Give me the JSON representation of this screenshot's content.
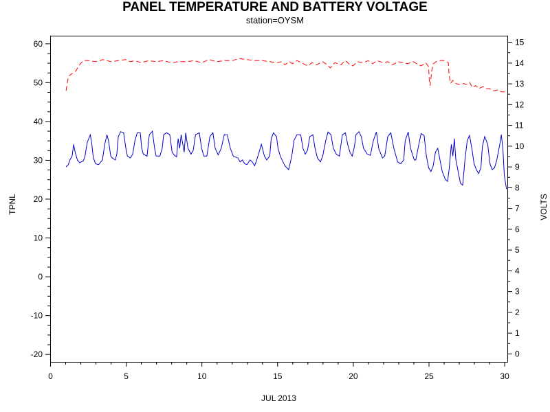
{
  "chart_data": {
    "type": "line",
    "title": "PANEL TEMPERATURE AND BATTERY VOLTAGE",
    "subtitle": "station=OYSM",
    "xlabel": "JUL 2013",
    "ylabel_left": "TPNL",
    "ylabel_right": "VOLTS",
    "xlim": [
      0,
      30.2
    ],
    "ylim_left": [
      -22,
      62
    ],
    "ylim_right": [
      -0.4,
      15.3
    ],
    "x_ticks": [
      0,
      5,
      10,
      15,
      20,
      25,
      30
    ],
    "y_left_ticks": [
      -20,
      -10,
      0,
      10,
      20,
      30,
      40,
      50,
      60
    ],
    "y_right_ticks": [
      0,
      1,
      2,
      3,
      4,
      5,
      6,
      7,
      8,
      9,
      10,
      11,
      12,
      13,
      14,
      15
    ],
    "grid": false,
    "legend": "none",
    "series": [
      {
        "axis": "left",
        "color": "#0000cc",
        "style": "solid",
        "points": [
          [
            1.05,
            28.2
          ],
          [
            1.2,
            28.8
          ],
          [
            1.3,
            30
          ],
          [
            1.45,
            31
          ],
          [
            1.55,
            34
          ],
          [
            1.65,
            32
          ],
          [
            1.8,
            30
          ],
          [
            1.95,
            29.3
          ],
          [
            2.2,
            29.8
          ],
          [
            2.3,
            31
          ],
          [
            2.45,
            34.5
          ],
          [
            2.65,
            36.5
          ],
          [
            2.75,
            34
          ],
          [
            2.85,
            30.5
          ],
          [
            3.0,
            29
          ],
          [
            3.2,
            28.8
          ],
          [
            3.45,
            30
          ],
          [
            3.6,
            34
          ],
          [
            3.75,
            36.5
          ],
          [
            3.85,
            35
          ],
          [
            4.0,
            31
          ],
          [
            4.1,
            30.5
          ],
          [
            4.3,
            30
          ],
          [
            4.4,
            31.5
          ],
          [
            4.5,
            36
          ],
          [
            4.65,
            37.3
          ],
          [
            4.85,
            37
          ],
          [
            5.0,
            33
          ],
          [
            5.1,
            31
          ],
          [
            5.3,
            30.5
          ],
          [
            5.45,
            31.5
          ],
          [
            5.6,
            35
          ],
          [
            5.75,
            37
          ],
          [
            5.95,
            37
          ],
          [
            6.05,
            33
          ],
          [
            6.15,
            31.5
          ],
          [
            6.4,
            31
          ],
          [
            6.55,
            36.5
          ],
          [
            6.75,
            37.4
          ],
          [
            6.9,
            33
          ],
          [
            7.0,
            31
          ],
          [
            7.25,
            31
          ],
          [
            7.4,
            33
          ],
          [
            7.5,
            36.5
          ],
          [
            7.7,
            37
          ],
          [
            7.9,
            36.5
          ],
          [
            8.05,
            32
          ],
          [
            8.2,
            31.2
          ],
          [
            8.35,
            30.8
          ],
          [
            8.45,
            35.5
          ],
          [
            8.55,
            33
          ],
          [
            8.65,
            36.5
          ],
          [
            8.85,
            32
          ],
          [
            8.95,
            37
          ],
          [
            9.1,
            33
          ],
          [
            9.3,
            31.5
          ],
          [
            9.45,
            32.5
          ],
          [
            9.6,
            36.5
          ],
          [
            9.85,
            37
          ],
          [
            10.0,
            33
          ],
          [
            10.15,
            31
          ],
          [
            10.35,
            31
          ],
          [
            10.55,
            36
          ],
          [
            10.75,
            37
          ],
          [
            10.9,
            33
          ],
          [
            11.1,
            31.3
          ],
          [
            11.3,
            33
          ],
          [
            11.5,
            36.5
          ],
          [
            11.7,
            36.5
          ],
          [
            11.9,
            33
          ],
          [
            12.1,
            31
          ],
          [
            12.4,
            30.5
          ],
          [
            12.55,
            29.5
          ],
          [
            12.7,
            30
          ],
          [
            12.85,
            29
          ],
          [
            13.0,
            28.8
          ],
          [
            13.2,
            30
          ],
          [
            13.35,
            29.5
          ],
          [
            13.5,
            28.5
          ],
          [
            13.6,
            29.5
          ],
          [
            13.8,
            32
          ],
          [
            13.95,
            34
          ],
          [
            14.15,
            31
          ],
          [
            14.3,
            30
          ],
          [
            14.5,
            31
          ],
          [
            14.6,
            35.5
          ],
          [
            14.75,
            37
          ],
          [
            14.95,
            36
          ],
          [
            15.05,
            33
          ],
          [
            15.2,
            31
          ],
          [
            15.5,
            28.5
          ],
          [
            15.75,
            27.5
          ],
          [
            15.9,
            30
          ],
          [
            16.0,
            32
          ],
          [
            16.1,
            35
          ],
          [
            16.3,
            36.5
          ],
          [
            16.55,
            36.5
          ],
          [
            16.7,
            33
          ],
          [
            16.85,
            31.5
          ],
          [
            17.0,
            32.5
          ],
          [
            17.15,
            36
          ],
          [
            17.35,
            36.5
          ],
          [
            17.5,
            33
          ],
          [
            17.65,
            30.5
          ],
          [
            17.85,
            29.5
          ],
          [
            18.0,
            31
          ],
          [
            18.2,
            35
          ],
          [
            18.35,
            37.2
          ],
          [
            18.55,
            36.5
          ],
          [
            18.7,
            33
          ],
          [
            18.9,
            31.5
          ],
          [
            19.1,
            31
          ],
          [
            19.3,
            36.5
          ],
          [
            19.5,
            37
          ],
          [
            19.65,
            34
          ],
          [
            19.8,
            32
          ],
          [
            19.95,
            31
          ],
          [
            20.1,
            33.5
          ],
          [
            20.2,
            36.5
          ],
          [
            20.4,
            37.3
          ],
          [
            20.55,
            36
          ],
          [
            20.7,
            33
          ],
          [
            20.95,
            31.5
          ],
          [
            21.15,
            31.2
          ],
          [
            21.35,
            35
          ],
          [
            21.55,
            37.2
          ],
          [
            21.7,
            33
          ],
          [
            21.95,
            30.5
          ],
          [
            22.1,
            31
          ],
          [
            22.3,
            36
          ],
          [
            22.5,
            37
          ],
          [
            22.7,
            33
          ],
          [
            22.95,
            29.5
          ],
          [
            23.15,
            29
          ],
          [
            23.35,
            30
          ],
          [
            23.45,
            35
          ],
          [
            23.65,
            37.2
          ],
          [
            23.8,
            33
          ],
          [
            24.05,
            30
          ],
          [
            24.15,
            30
          ],
          [
            24.35,
            34
          ],
          [
            24.5,
            36.8
          ],
          [
            24.7,
            36.3
          ],
          [
            24.85,
            31
          ],
          [
            25.0,
            28
          ],
          [
            25.15,
            27
          ],
          [
            25.3,
            28.5
          ],
          [
            25.45,
            32
          ],
          [
            25.6,
            33
          ],
          [
            25.75,
            30
          ],
          [
            25.9,
            27
          ],
          [
            26.1,
            25
          ],
          [
            26.25,
            24.5
          ],
          [
            26.35,
            27.5
          ],
          [
            26.5,
            34
          ],
          [
            26.6,
            31
          ],
          [
            26.7,
            35.5
          ],
          [
            26.8,
            30
          ],
          [
            26.95,
            27
          ],
          [
            27.1,
            24
          ],
          [
            27.25,
            23.5
          ],
          [
            27.4,
            30
          ],
          [
            27.55,
            35
          ],
          [
            27.7,
            36.3
          ],
          [
            27.85,
            33
          ],
          [
            28.0,
            29
          ],
          [
            28.15,
            27.5
          ],
          [
            28.3,
            26.5
          ],
          [
            28.45,
            28
          ],
          [
            28.55,
            33.5
          ],
          [
            28.7,
            36
          ],
          [
            28.9,
            34
          ],
          [
            29.05,
            29
          ],
          [
            29.2,
            27.5
          ],
          [
            29.35,
            28
          ],
          [
            29.5,
            30
          ],
          [
            29.6,
            32
          ],
          [
            29.7,
            34
          ],
          [
            29.8,
            36.5
          ],
          [
            29.9,
            33
          ],
          [
            30.0,
            26
          ],
          [
            30.1,
            23.5
          ],
          [
            30.15,
            22.5
          ]
        ]
      },
      {
        "axis": "right",
        "color": "#ff0000",
        "style": "dashed",
        "points": [
          [
            1.05,
            12.65
          ],
          [
            1.1,
            12.9
          ],
          [
            1.2,
            13.3
          ],
          [
            1.3,
            13.4
          ],
          [
            1.5,
            13.5
          ],
          [
            1.7,
            13.6
          ],
          [
            1.85,
            13.8
          ],
          [
            2.0,
            13.95
          ],
          [
            2.2,
            14.1
          ],
          [
            2.5,
            14.1
          ],
          [
            3.0,
            14.05
          ],
          [
            3.5,
            14.15
          ],
          [
            4.0,
            14.05
          ],
          [
            4.5,
            14.1
          ],
          [
            5.0,
            14.15
          ],
          [
            5.3,
            14.05
          ],
          [
            5.6,
            14.1
          ],
          [
            6.0,
            14.0
          ],
          [
            6.5,
            14.1
          ],
          [
            7.0,
            14.05
          ],
          [
            7.5,
            14.1
          ],
          [
            8.0,
            14.0
          ],
          [
            8.5,
            14.05
          ],
          [
            9.0,
            14.05
          ],
          [
            9.5,
            14.1
          ],
          [
            10.0,
            14.0
          ],
          [
            10.5,
            14.15
          ],
          [
            11.0,
            14.05
          ],
          [
            11.5,
            14.1
          ],
          [
            12.0,
            14.1
          ],
          [
            12.5,
            14.2
          ],
          [
            13.0,
            14.15
          ],
          [
            13.5,
            14.1
          ],
          [
            14.0,
            14.1
          ],
          [
            14.5,
            14.05
          ],
          [
            15.0,
            14.0
          ],
          [
            15.3,
            14.05
          ],
          [
            15.5,
            13.9
          ],
          [
            15.8,
            14.05
          ],
          [
            16.0,
            13.95
          ],
          [
            16.3,
            14.1
          ],
          [
            16.6,
            14.0
          ],
          [
            17.0,
            13.85
          ],
          [
            17.3,
            14.0
          ],
          [
            17.6,
            13.9
          ],
          [
            18.0,
            14.05
          ],
          [
            18.3,
            13.9
          ],
          [
            18.5,
            13.75
          ],
          [
            18.8,
            14.0
          ],
          [
            19.2,
            13.9
          ],
          [
            19.5,
            14.1
          ],
          [
            19.8,
            13.9
          ],
          [
            20.0,
            13.85
          ],
          [
            20.3,
            14.05
          ],
          [
            20.7,
            14.0
          ],
          [
            21.0,
            14.1
          ],
          [
            21.3,
            13.95
          ],
          [
            21.6,
            14.1
          ],
          [
            22.0,
            14.0
          ],
          [
            22.3,
            14.05
          ],
          [
            22.6,
            13.9
          ],
          [
            23.0,
            14.05
          ],
          [
            23.3,
            14.0
          ],
          [
            23.6,
            13.95
          ],
          [
            24.0,
            14.05
          ],
          [
            24.2,
            13.95
          ],
          [
            24.5,
            13.85
          ],
          [
            24.8,
            14.0
          ],
          [
            25.0,
            13.8
          ],
          [
            25.05,
            13.0
          ],
          [
            25.1,
            12.9
          ],
          [
            25.2,
            13.6
          ],
          [
            25.3,
            13.95
          ],
          [
            25.5,
            14.05
          ],
          [
            25.8,
            14.1
          ],
          [
            26.0,
            14.1
          ],
          [
            26.3,
            14.0
          ],
          [
            26.35,
            13.4
          ],
          [
            26.45,
            13.0
          ],
          [
            26.6,
            13.15
          ],
          [
            26.8,
            13.0
          ],
          [
            27.0,
            12.95
          ],
          [
            27.3,
            13.0
          ],
          [
            27.5,
            12.95
          ],
          [
            27.7,
            13.05
          ],
          [
            27.9,
            12.8
          ],
          [
            28.1,
            12.9
          ],
          [
            28.3,
            12.75
          ],
          [
            28.6,
            12.85
          ],
          [
            28.8,
            12.75
          ],
          [
            29.0,
            12.75
          ],
          [
            29.3,
            12.65
          ],
          [
            29.6,
            12.7
          ],
          [
            29.8,
            12.6
          ],
          [
            30.0,
            12.6
          ],
          [
            30.15,
            12.55
          ]
        ]
      }
    ]
  }
}
